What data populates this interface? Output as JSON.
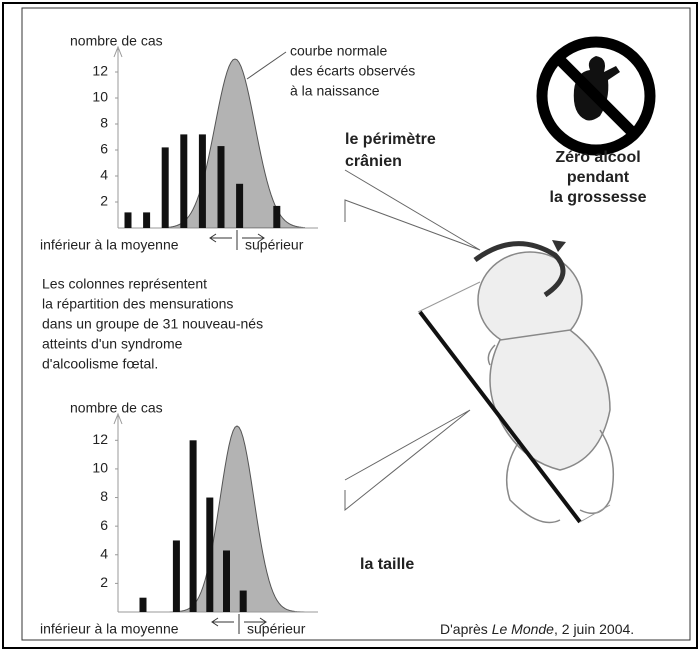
{
  "chart_data": [
    {
      "type": "bar",
      "ylabel": "nombre de cas",
      "annotation": [
        "courbe normale",
        "des écarts observés",
        "à la naissance"
      ],
      "label": [
        "le périmètre",
        "crânien"
      ],
      "xlabel_left": "inférieur à la moyenne",
      "xlabel_right": "supérieur",
      "categories": [
        null,
        null,
        null,
        null,
        null,
        null,
        null,
        null,
        null
      ],
      "values": [
        1.2,
        1.2,
        6.2,
        7.2,
        7.2,
        6.3,
        3.4,
        null,
        1.7
      ],
      "color": "#111111",
      "ylim": [
        0,
        13
      ],
      "yticks": [
        2,
        4,
        6,
        8,
        10,
        12
      ]
    },
    {
      "type": "bar",
      "ylabel": "nombre de cas",
      "label": [
        "la taille"
      ],
      "xlabel_left": "inférieur à la moyenne",
      "xlabel_right": "supérieur",
      "categories": [
        null,
        null,
        null,
        null,
        null,
        null,
        null
      ],
      "values": [
        1,
        null,
        5,
        12,
        8,
        4.3,
        1.5
      ],
      "color": "#111111",
      "ylim": [
        0,
        13
      ],
      "yticks": [
        2,
        4,
        6,
        8,
        10,
        12
      ]
    }
  ],
  "sign": [
    "Zéro alcool",
    "pendant",
    "la grossesse"
  ],
  "caption": [
    "Les colonnes représentent",
    "la répartition des mensurations",
    "dans un groupe de 31 nouveau-nés",
    "atteints d'un syndrome",
    "d'alcoolisme fœtal."
  ],
  "source": [
    "D'après ",
    "Le Monde",
    ", 2 juin 2004."
  ]
}
